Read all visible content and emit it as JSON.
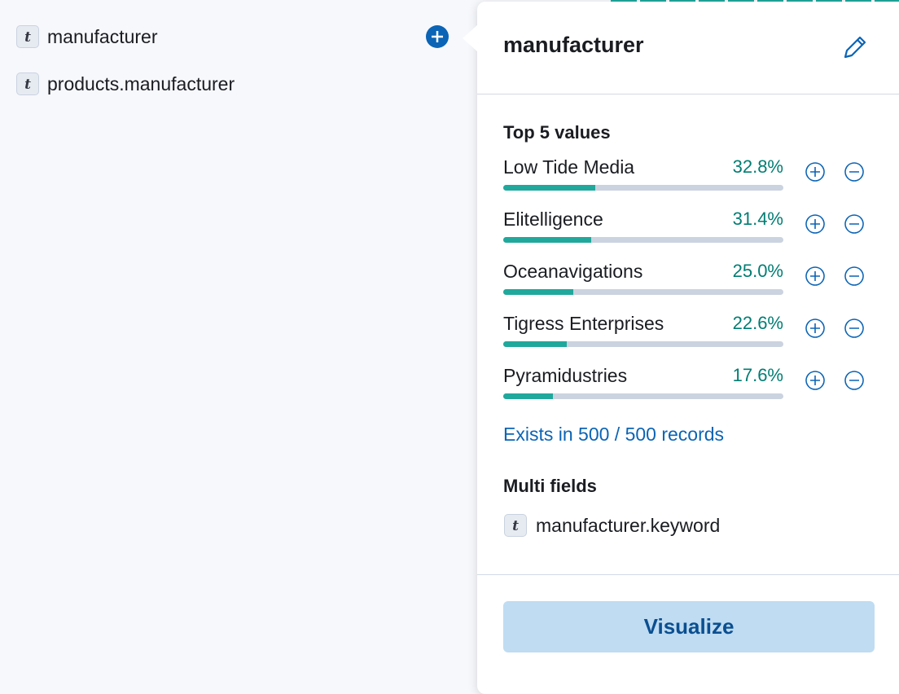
{
  "sidebar": {
    "fields": [
      {
        "icon": "t",
        "name": "manufacturer"
      },
      {
        "icon": "t",
        "name": "products.manufacturer"
      }
    ]
  },
  "popover": {
    "title": "manufacturer",
    "top_values": {
      "title": "Top 5 values",
      "labels": [
        "Low Tide Media",
        "Elitelligence",
        "Oceanavigations",
        "Tigress Enterprises",
        "Pyramidustries"
      ],
      "values": [
        32.8,
        31.4,
        25.0,
        22.6,
        17.6
      ],
      "value_labels": [
        "32.8%",
        "31.4%",
        "25.0%",
        "22.6%",
        "17.6%"
      ]
    },
    "exists": "Exists in 500 / 500 records",
    "multi_fields": {
      "title": "Multi fields",
      "items": [
        {
          "icon": "t",
          "name": "manufacturer.keyword"
        }
      ]
    },
    "button": "Visualize"
  }
}
